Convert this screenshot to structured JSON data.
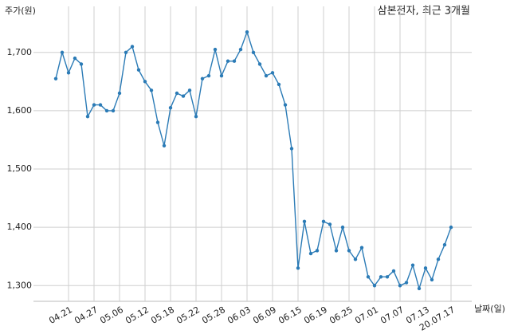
{
  "chart_data": {
    "type": "line",
    "title": "삼본전자, 최근 3개월",
    "y_label": "주가(원)",
    "x_label": "날짜(일)",
    "categories": [
      null,
      null,
      "04.21",
      null,
      null,
      null,
      "04.27",
      null,
      null,
      null,
      "05.06",
      null,
      null,
      null,
      "05.12",
      null,
      null,
      null,
      "05.18",
      null,
      null,
      null,
      "05.22",
      null,
      null,
      null,
      "05.28",
      null,
      null,
      null,
      "06.03",
      null,
      null,
      null,
      "06.09",
      null,
      null,
      null,
      "06.15",
      null,
      null,
      null,
      "06.19",
      null,
      null,
      null,
      "06.25",
      null,
      null,
      null,
      "07.01",
      null,
      null,
      null,
      "07.07",
      null,
      null,
      null,
      "07.13",
      null,
      null,
      null,
      "20.07.17"
    ],
    "values": [
      1655,
      1700,
      1665,
      1690,
      1680,
      1590,
      1610,
      1610,
      1600,
      1600,
      1630,
      1700,
      1710,
      1670,
      1650,
      1635,
      1580,
      1540,
      1605,
      1630,
      1625,
      1635,
      1590,
      1655,
      1660,
      1705,
      1660,
      1685,
      1685,
      1705,
      1735,
      1700,
      1680,
      1660,
      1665,
      1645,
      1610,
      1535,
      1330,
      1410,
      1355,
      1360,
      1410,
      1405,
      1360,
      1400,
      1360,
      1345,
      1365,
      1315,
      1300,
      1315,
      1315,
      1325,
      1300,
      1305,
      1335,
      1295,
      1330,
      1310,
      1345,
      1370,
      1400
    ],
    "color": "#2b7bb6",
    "ylim": [
      1273,
      1779
    ],
    "yticks": [
      {
        "value": 1300,
        "label": "1,300"
      },
      {
        "value": 1400,
        "label": "1,400"
      },
      {
        "value": 1500,
        "label": "1,500"
      },
      {
        "value": 1600,
        "label": "1,600"
      },
      {
        "value": 1700,
        "label": "1,700"
      }
    ],
    "grid": true
  }
}
